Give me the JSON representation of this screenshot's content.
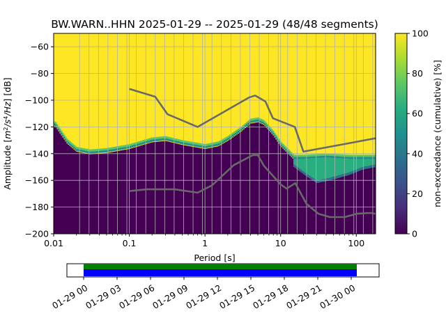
{
  "chart_data": [
    {
      "type": "heatmap",
      "title": "BW.WARN..HHN   2025-01-29 -- 2025-01-29  (48/48 segments)",
      "xlabel": "Period [s]",
      "ylabel_parts": [
        "Amplitude [",
        "m",
        "2",
        "/",
        "s",
        "4",
        "/",
        "Hz",
        "] [dB]"
      ],
      "xscale": "log",
      "xlim": [
        0.01,
        180
      ],
      "ylim": [
        -200,
        -50
      ],
      "xticks": [
        {
          "value": 0.01,
          "label": "0.01"
        },
        {
          "value": 0.1,
          "label": "0.1"
        },
        {
          "value": 1,
          "label": "1"
        },
        {
          "value": 10,
          "label": "10"
        },
        {
          "value": 100,
          "label": "100"
        }
      ],
      "yticks": [
        {
          "value": -60,
          "label": "−60"
        },
        {
          "value": -80,
          "label": "−80"
        },
        {
          "value": -100,
          "label": "−100"
        },
        {
          "value": -120,
          "label": "−120"
        },
        {
          "value": -140,
          "label": "−140"
        },
        {
          "value": -160,
          "label": "−160"
        },
        {
          "value": -180,
          "label": "−180"
        },
        {
          "value": -200,
          "label": "−200"
        }
      ],
      "grid": true,
      "period_bins_start": 0.022,
      "period_bins_per_decade": 8,
      "noise_floor_color": "#440154",
      "saturated_color": "#fde725",
      "transition_band": [
        {
          "x": 0.0105,
          "dB": -119
        },
        {
          "x": 0.012,
          "dB": -124
        },
        {
          "x": 0.015,
          "dB": -132
        },
        {
          "x": 0.02,
          "dB": -138
        },
        {
          "x": 0.03,
          "dB": -140
        },
        {
          "x": 0.05,
          "dB": -139
        },
        {
          "x": 0.1,
          "dB": -136
        },
        {
          "x": 0.2,
          "dB": -131
        },
        {
          "x": 0.3,
          "dB": -130
        },
        {
          "x": 0.5,
          "dB": -133
        },
        {
          "x": 1,
          "dB": -136
        },
        {
          "x": 1.5,
          "dB": -134
        },
        {
          "x": 2,
          "dB": -130
        },
        {
          "x": 3,
          "dB": -123
        },
        {
          "x": 4,
          "dB": -117
        },
        {
          "x": 5,
          "dB": -116
        },
        {
          "x": 6,
          "dB": -118
        },
        {
          "x": 8,
          "dB": -126
        },
        {
          "x": 10,
          "dB": -134
        },
        {
          "x": 15,
          "dB": -144
        },
        {
          "x": 20,
          "dB": -144
        },
        {
          "x": 40,
          "dB": -143
        },
        {
          "x": 80,
          "dB": -144
        },
        {
          "x": 180,
          "dB": -144
        }
      ],
      "green_band_bottom": [
        {
          "x": 15,
          "dB": -150
        },
        {
          "x": 22,
          "dB": -157
        },
        {
          "x": 30,
          "dB": -162
        },
        {
          "x": 45,
          "dB": -160
        },
        {
          "x": 80,
          "dB": -156
        },
        {
          "x": 120,
          "dB": -152
        },
        {
          "x": 180,
          "dB": -150
        }
      ],
      "series": [
        {
          "role": "high noise model",
          "color": "#696969",
          "points": [
            {
              "x": 0.1,
              "y": -91.5
            },
            {
              "x": 0.22,
              "y": -97.4
            },
            {
              "x": 0.32,
              "y": -110.5
            },
            {
              "x": 0.8,
              "y": -120
            },
            {
              "x": 3.8,
              "y": -98
            },
            {
              "x": 4.6,
              "y": -96.5
            },
            {
              "x": 6.3,
              "y": -101
            },
            {
              "x": 7.9,
              "y": -113.5
            },
            {
              "x": 15.4,
              "y": -120
            },
            {
              "x": 20,
              "y": -138.5
            },
            {
              "x": 180,
              "y": -128.5
            }
          ]
        },
        {
          "role": "low noise model",
          "color": "#696969",
          "points": [
            {
              "x": 0.1,
              "y": -168
            },
            {
              "x": 0.17,
              "y": -166.7
            },
            {
              "x": 0.4,
              "y": -166.7
            },
            {
              "x": 0.8,
              "y": -169.2
            },
            {
              "x": 1.24,
              "y": -163.7
            },
            {
              "x": 2.4,
              "y": -148.6
            },
            {
              "x": 4.3,
              "y": -141.1
            },
            {
              "x": 5,
              "y": -141.1
            },
            {
              "x": 6,
              "y": -149
            },
            {
              "x": 10,
              "y": -163
            },
            {
              "x": 12,
              "y": -166.2
            },
            {
              "x": 15.6,
              "y": -162.1
            },
            {
              "x": 21.9,
              "y": -177.5
            },
            {
              "x": 31.6,
              "y": -185
            },
            {
              "x": 45,
              "y": -187.5
            },
            {
              "x": 70,
              "y": -187.5
            },
            {
              "x": 101,
              "y": -185
            },
            {
              "x": 154,
              "y": -184.4
            },
            {
              "x": 180,
              "y": -185
            }
          ]
        }
      ]
    },
    {
      "type": "colorbar",
      "label": "non-exceedance (cumulative) [%]",
      "range": [
        0,
        100
      ],
      "ticks": [
        {
          "value": 0,
          "label": "0"
        },
        {
          "value": 20,
          "label": "20"
        },
        {
          "value": 40,
          "label": "40"
        },
        {
          "value": 60,
          "label": "60"
        },
        {
          "value": 80,
          "label": "80"
        },
        {
          "value": 100,
          "label": "100"
        }
      ],
      "colormap": [
        "#440154",
        "#472c7a",
        "#3b518b",
        "#2c718e",
        "#21908d",
        "#27ad81",
        "#5cc863",
        "#aadc32",
        "#fde725"
      ]
    },
    {
      "type": "timeline",
      "xlim_hours": [
        -1.5,
        26.5
      ],
      "xticks": [
        {
          "value": 0,
          "label": "01-29 00"
        },
        {
          "value": 3,
          "label": "01-29 03"
        },
        {
          "value": 6,
          "label": "01-29 06"
        },
        {
          "value": 9,
          "label": "01-29 09"
        },
        {
          "value": 12,
          "label": "01-29 12"
        },
        {
          "value": 15,
          "label": "01-29 15"
        },
        {
          "value": 18,
          "label": "01-29 18"
        },
        {
          "value": 21,
          "label": "01-29 21"
        },
        {
          "value": 24,
          "label": "01-30 00"
        }
      ],
      "data_coverage": {
        "start_hour": 0,
        "end_hour": 24.5,
        "color": "#008000"
      },
      "psd_segments": {
        "start_hour": 0,
        "end_hour": 24.5,
        "color": "#0000ff"
      }
    }
  ]
}
